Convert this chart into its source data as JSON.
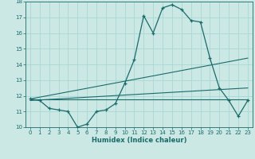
{
  "xlabel": "Humidex (Indice chaleur)",
  "bg_color": "#cbe8e4",
  "line_color": "#1a6b6b",
  "grid_color": "#a8d8d4",
  "xlim": [
    -0.5,
    23.5
  ],
  "ylim": [
    10,
    18
  ],
  "xticks": [
    0,
    1,
    2,
    3,
    4,
    5,
    6,
    7,
    8,
    9,
    10,
    11,
    12,
    13,
    14,
    15,
    16,
    17,
    18,
    19,
    20,
    21,
    22,
    23
  ],
  "yticks": [
    10,
    11,
    12,
    13,
    14,
    15,
    16,
    17,
    18
  ],
  "line1_x": [
    0,
    1,
    2,
    3,
    4,
    5,
    6,
    7,
    8,
    9,
    10,
    11,
    12,
    13,
    14,
    15,
    16,
    17,
    18,
    19,
    20,
    21,
    22,
    23
  ],
  "line1_y": [
    11.8,
    11.7,
    11.2,
    11.1,
    11.0,
    10.0,
    10.2,
    11.0,
    11.1,
    11.5,
    12.8,
    14.3,
    17.1,
    16.0,
    17.6,
    17.8,
    17.5,
    16.8,
    16.7,
    14.4,
    12.5,
    11.7,
    10.7,
    11.7
  ],
  "line2_x": [
    0,
    23
  ],
  "line2_y": [
    11.8,
    14.4
  ],
  "line3_x": [
    0,
    23
  ],
  "line3_y": [
    11.7,
    12.5
  ],
  "line4_x": [
    0,
    23
  ],
  "line4_y": [
    11.75,
    11.75
  ]
}
